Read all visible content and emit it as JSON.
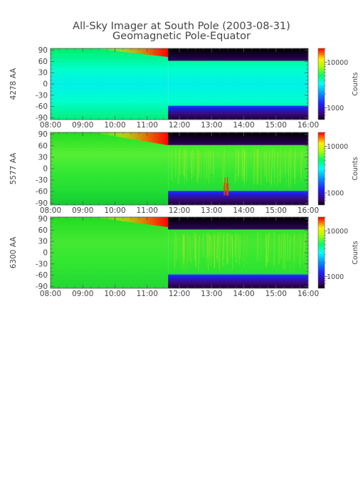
{
  "title": "All-Sky Imager at South Pole (2003-08-31)",
  "subtitle": "Geomagnetic Pole-Equator",
  "chart_data": {
    "type": "heatmap",
    "x_ticks": [
      "08:00",
      "09:00",
      "10:00",
      "11:00",
      "12:00",
      "13:00",
      "14:00",
      "15:00",
      "16:00"
    ],
    "x_range_hours": [
      8,
      16
    ],
    "y_ticks": [
      90,
      60,
      30,
      0,
      -30,
      -60,
      -90
    ],
    "y_range": [
      -95,
      95
    ],
    "colorbar": {
      "label": "Counts",
      "scale": "log",
      "tick_labels": [
        "10000",
        "1000"
      ],
      "tick_values": [
        10000,
        1000
      ]
    },
    "panels": [
      {
        "ylabel": "4278 AA",
        "description_values": {
          "daylight_end_hour": 11.65
        }
      },
      {
        "ylabel": "5577 AA",
        "description_values": {
          "daylight_end_hour": 11.65
        }
      },
      {
        "ylabel": "6300 AA",
        "description_values": {
          "daylight_end_hour": 11.65
        }
      }
    ]
  }
}
